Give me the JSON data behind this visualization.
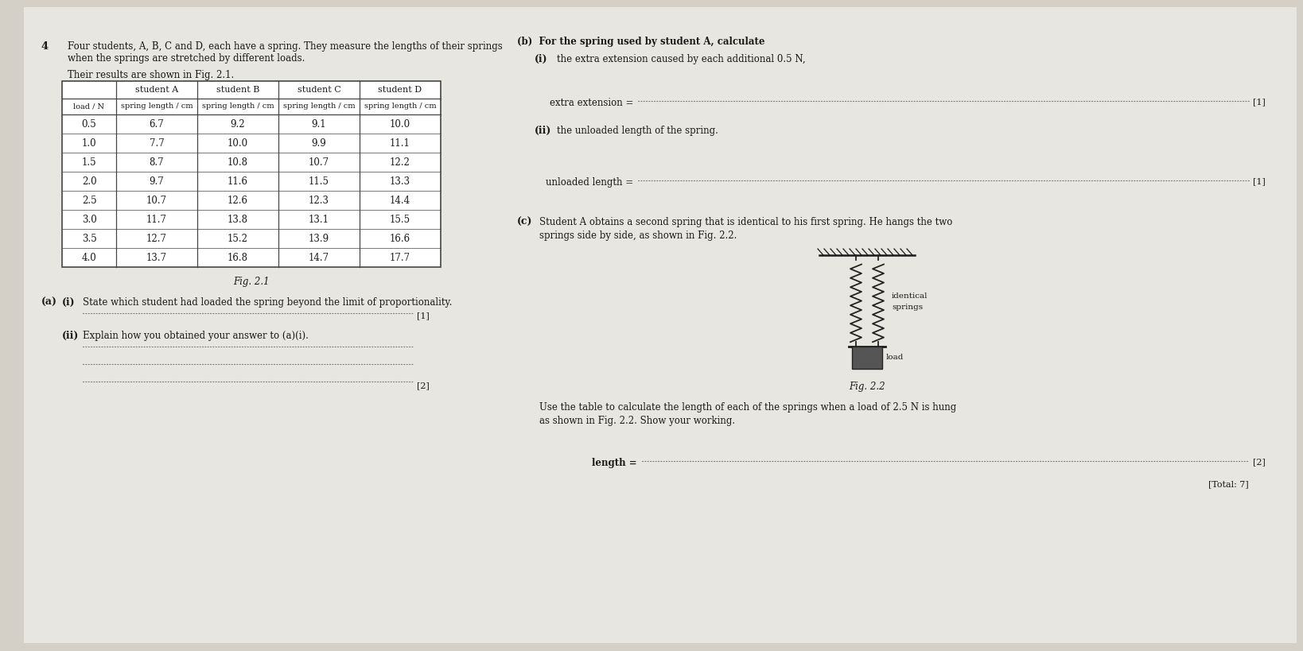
{
  "question_number": "4",
  "question_text_line1": "Four students, A, B, C and D, each have a spring. They measure the lengths of their springs",
  "question_text_line2": "when the springs are stretched by different loads.",
  "results_text": "Their results are shown in Fig. 2.1.",
  "fig21_label": "Fig. 2.1",
  "fig22_label": "Fig. 2.2",
  "table_headers": [
    "",
    "student A",
    "student B",
    "student C",
    "student D"
  ],
  "table_subheaders": [
    "load / N",
    "spring length / cm",
    "spring length / cm",
    "spring length / cm",
    "spring length / cm"
  ],
  "table_data": [
    [
      "0.5",
      "6.7",
      "9.2",
      "9.1",
      "10.0"
    ],
    [
      "1.0",
      "7.7",
      "10.0",
      "9.9",
      "11.1"
    ],
    [
      "1.5",
      "8.7",
      "10.8",
      "10.7",
      "12.2"
    ],
    [
      "2.0",
      "9.7",
      "11.6",
      "11.5",
      "13.3"
    ],
    [
      "2.5",
      "10.7",
      "12.6",
      "12.3",
      "14.4"
    ],
    [
      "3.0",
      "11.7",
      "13.8",
      "13.1",
      "15.5"
    ],
    [
      "3.5",
      "12.7",
      "15.2",
      "13.9",
      "16.6"
    ],
    [
      "4.0",
      "13.7",
      "16.8",
      "14.7",
      "17.7"
    ]
  ],
  "part_a_i_label_a": "(a)",
  "part_a_i_label_i": "(i)",
  "part_a_i_text": "State which student had loaded the spring beyond the limit of proportionality.",
  "part_a_ii_label": "(ii)",
  "part_a_ii_text": "Explain how you obtained your answer to (a)(i).",
  "part_b_header": "(b)  For the spring used by student A, calculate",
  "part_b_i_label": "(i)",
  "part_b_i_text": "the extra extension caused by each additional 0.5 N,",
  "extra_extension_label": "extra extension = ",
  "part_b_ii_label": "(ii)",
  "part_b_ii_text": "the unloaded length of the spring.",
  "unloaded_length_label": "unloaded length = ",
  "part_c_label": "(c)",
  "part_c_text_line1": "Student A obtains a second spring that is identical to his first spring. He hangs the two",
  "part_c_text_line2": "springs side by side, as shown in Fig. 2.2.",
  "identical_label_line1": "identical",
  "identical_label_line2": "springs",
  "load_label": "load",
  "use_table_text_line1": "Use the table to calculate the length of each of the springs when a load of 2.5 N is hung",
  "use_table_text_line2": "as shown in Fig. 2.2. Show your working.",
  "length_label": "length = ",
  "total_label": "[Total: 7]",
  "mark_1": "[1]",
  "mark_2": "[2]",
  "bg_color": "#d4d0c8",
  "paper_color": "#e8e6e0",
  "text_color": "#1a1a1a",
  "table_line_color": "#444444",
  "dotted_line_color": "#777777"
}
